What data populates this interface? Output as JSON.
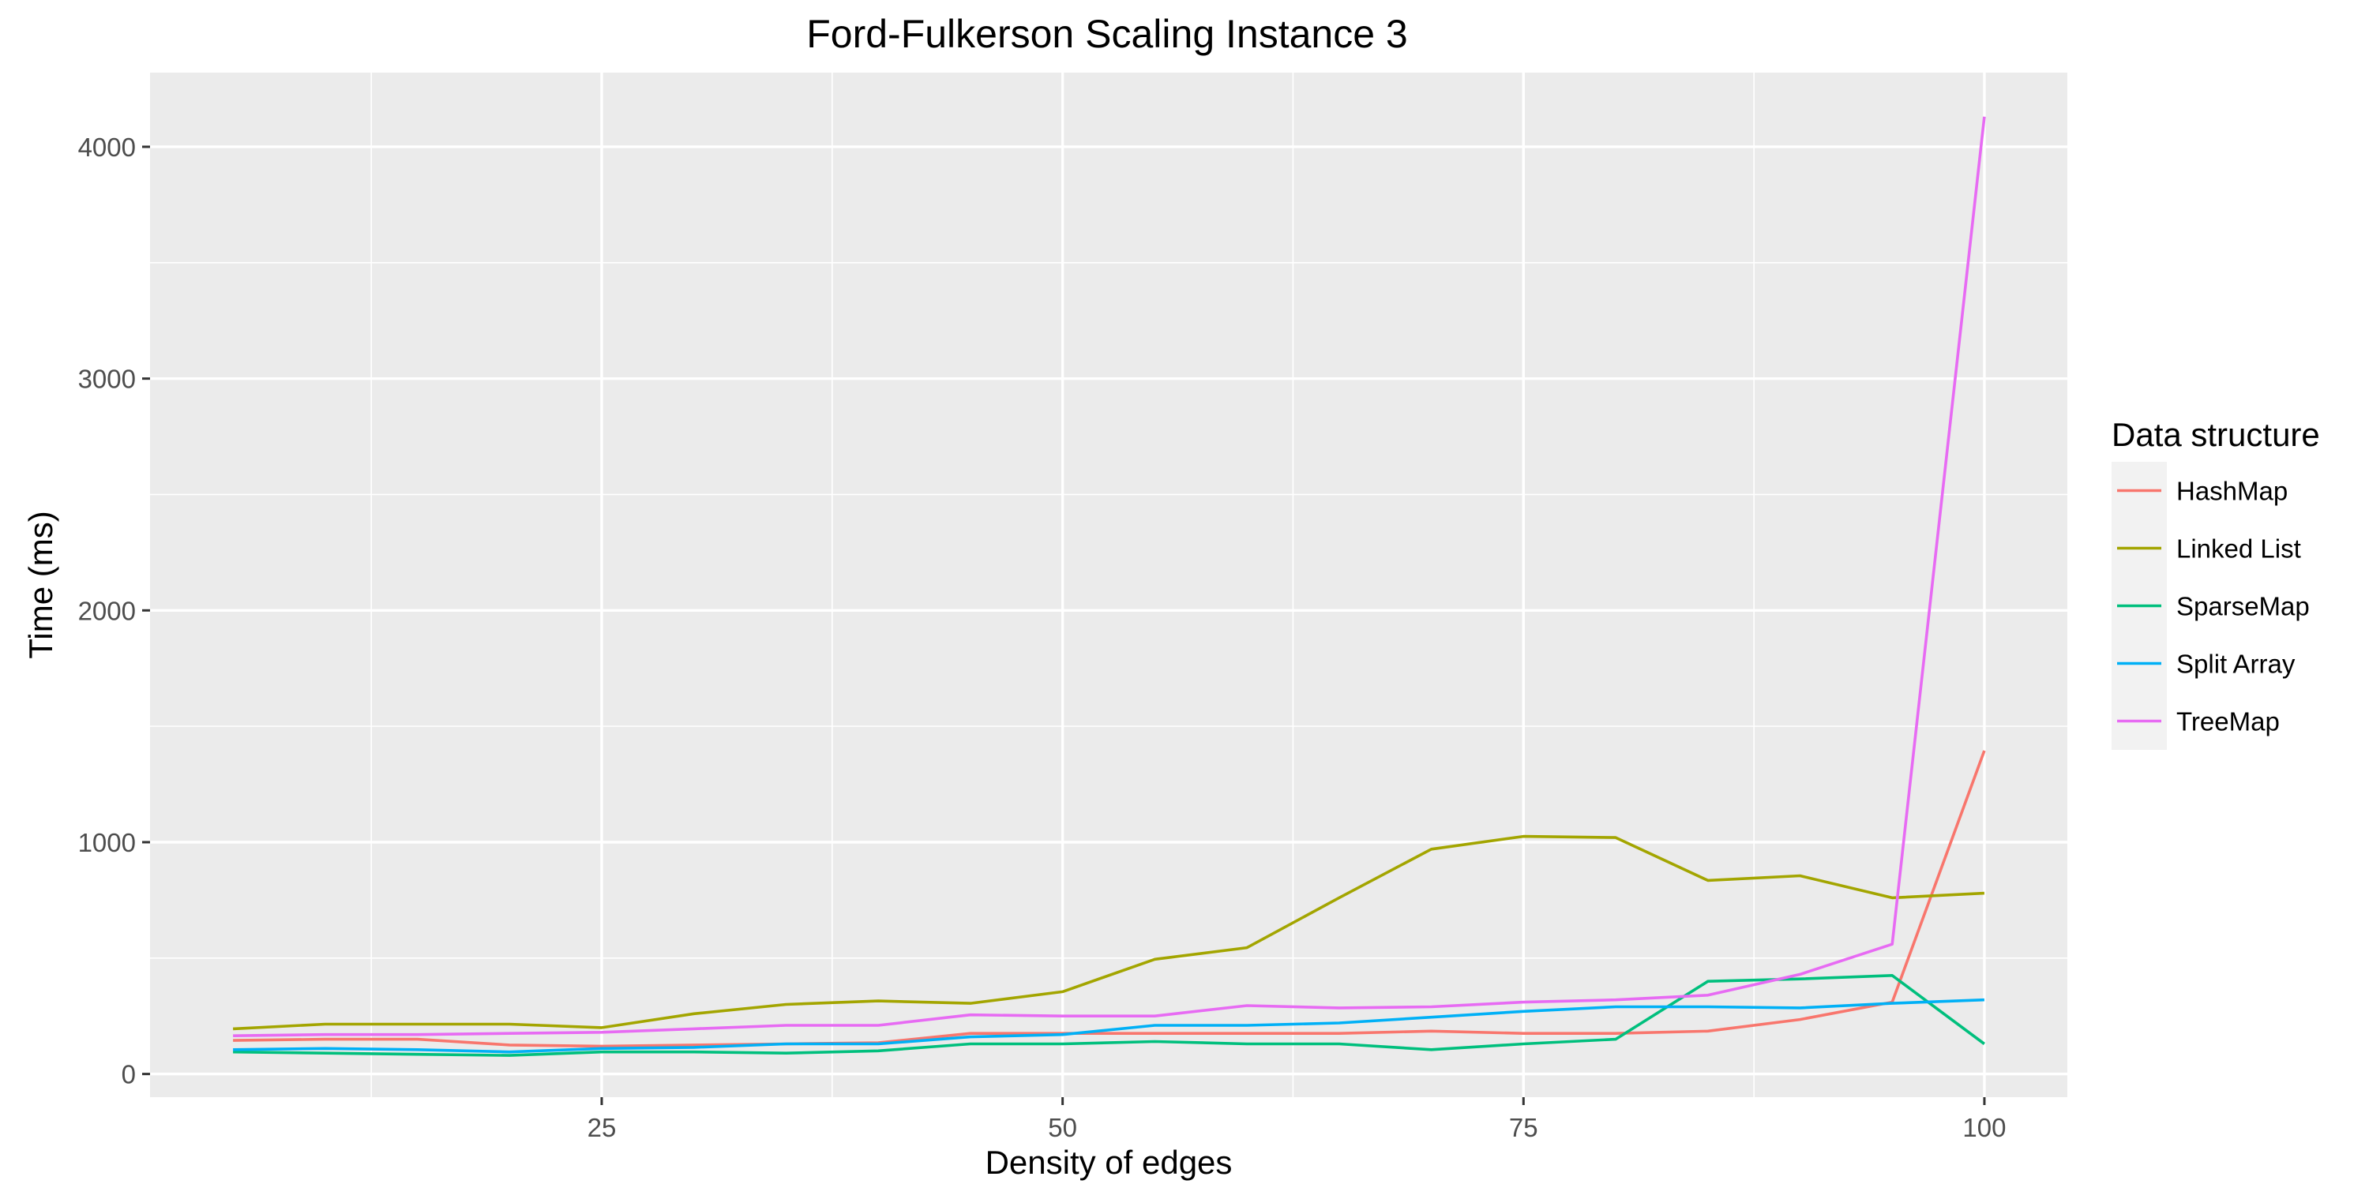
{
  "chart_data": {
    "type": "line",
    "title": "Ford-Fulkerson Scaling Instance 3",
    "xlabel": "Density of edges",
    "ylabel": "Time (ms)",
    "xlim": [
      0.5,
      104.5
    ],
    "ylim": [
      -100,
      4320
    ],
    "xticks": [
      25,
      50,
      75,
      100
    ],
    "yticks": [
      0,
      1000,
      2000,
      3000,
      4000
    ],
    "grid": true,
    "legend": {
      "title": "Data structure",
      "position": "right"
    },
    "x": [
      5,
      10,
      15,
      20,
      25,
      30,
      35,
      40,
      45,
      50,
      55,
      60,
      65,
      70,
      75,
      80,
      85,
      90,
      95,
      100
    ],
    "series": [
      {
        "name": "HashMap",
        "color": "#F8766D",
        "values": [
          145,
          150,
          150,
          125,
          120,
          125,
          130,
          135,
          175,
          175,
          175,
          175,
          175,
          185,
          175,
          175,
          185,
          235,
          310,
          1395
        ]
      },
      {
        "name": "Linked List",
        "color": "#A3A500",
        "values": [
          195,
          215,
          215,
          215,
          200,
          260,
          300,
          315,
          305,
          355,
          495,
          545,
          760,
          970,
          1025,
          1020,
          835,
          855,
          760,
          780
        ]
      },
      {
        "name": "SparseMap",
        "color": "#00BF7D",
        "values": [
          95,
          90,
          85,
          80,
          95,
          95,
          90,
          100,
          130,
          130,
          140,
          130,
          130,
          105,
          130,
          150,
          400,
          410,
          425,
          130
        ]
      },
      {
        "name": "Split Array",
        "color": "#00B0F6",
        "values": [
          105,
          110,
          105,
          95,
          110,
          115,
          130,
          130,
          160,
          170,
          210,
          210,
          220,
          245,
          270,
          290,
          290,
          285,
          305,
          320
        ]
      },
      {
        "name": "TreeMap",
        "color": "#E76BF3",
        "values": [
          165,
          170,
          170,
          175,
          180,
          195,
          210,
          210,
          255,
          250,
          250,
          295,
          285,
          290,
          310,
          320,
          340,
          430,
          560,
          4130
        ]
      }
    ]
  }
}
